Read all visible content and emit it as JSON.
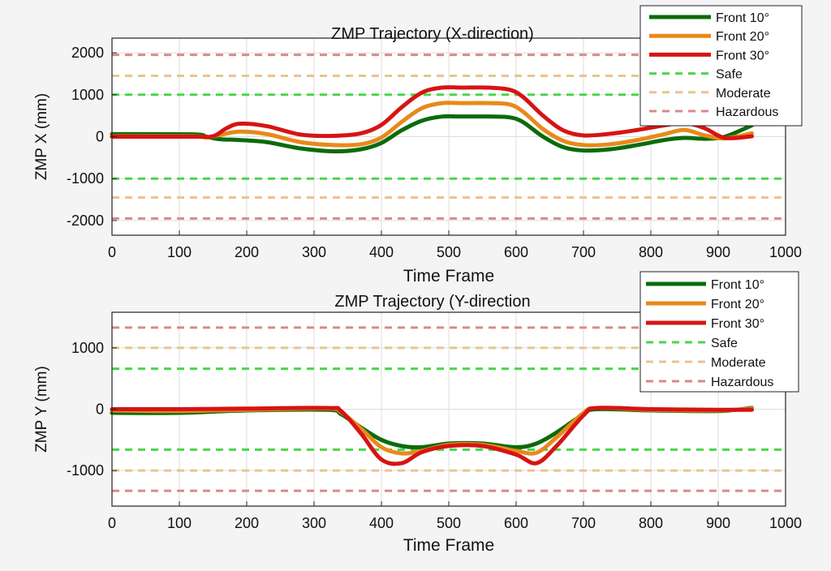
{
  "chart_data": [
    {
      "type": "line",
      "title": "ZMP Trajectory (X-direction)",
      "xlabel": "Time Frame",
      "ylabel": "ZMP X (mm)",
      "xlim": [
        0,
        1000
      ],
      "ylim": [
        -2350,
        2350
      ],
      "xticks": [
        0,
        100,
        200,
        300,
        400,
        500,
        600,
        700,
        800,
        900,
        1000
      ],
      "yticks": [
        -2000,
        -1000,
        0,
        1000,
        2000
      ],
      "grid": true,
      "legend": "top-right",
      "series": [
        {
          "name": "Front 10°",
          "color": "#0b6b0b",
          "x": [
            0,
            120,
            140,
            160,
            190,
            230,
            280,
            330,
            370,
            400,
            430,
            460,
            490,
            520,
            560,
            590,
            610,
            640,
            670,
            700,
            740,
            780,
            820,
            850,
            880,
            910,
            950
          ],
          "y": [
            60,
            55,
            0,
            -60,
            -80,
            -130,
            -280,
            -350,
            -300,
            -150,
            150,
            380,
            480,
            480,
            480,
            460,
            350,
            0,
            -250,
            -330,
            -300,
            -200,
            -80,
            -30,
            -50,
            0,
            270
          ]
        },
        {
          "name": "Front 20°",
          "color": "#e8891a",
          "x": [
            0,
            120,
            140,
            160,
            190,
            230,
            280,
            330,
            370,
            400,
            430,
            460,
            490,
            520,
            560,
            590,
            610,
            640,
            670,
            700,
            740,
            780,
            820,
            850,
            880,
            910,
            950
          ],
          "y": [
            10,
            10,
            -20,
            40,
            120,
            60,
            -130,
            -200,
            -180,
            -20,
            350,
            680,
            800,
            800,
            800,
            770,
            600,
            180,
            -100,
            -200,
            -180,
            -80,
            60,
            160,
            30,
            -40,
            80
          ]
        },
        {
          "name": "Front 30°",
          "color": "#d61414",
          "x": [
            0,
            120,
            150,
            170,
            190,
            230,
            280,
            330,
            370,
            400,
            430,
            460,
            490,
            520,
            560,
            590,
            610,
            640,
            670,
            700,
            740,
            780,
            820,
            850,
            880,
            910,
            950
          ],
          "y": [
            0,
            0,
            10,
            200,
            310,
            250,
            50,
            20,
            80,
            280,
            700,
            1050,
            1170,
            1170,
            1170,
            1120,
            950,
            500,
            150,
            30,
            70,
            160,
            270,
            330,
            200,
            -30,
            10
          ]
        }
      ],
      "reference_lines": [
        {
          "name": "Safe",
          "color": "#49d64a",
          "values": [
            1000,
            -1000
          ]
        },
        {
          "name": "Moderate",
          "color": "#ecc38d",
          "values": [
            1450,
            -1450
          ]
        },
        {
          "name": "Hazardous",
          "color": "#d88a8a",
          "values": [
            1950,
            -1950
          ]
        }
      ]
    },
    {
      "type": "line",
      "title": "ZMP Trajectory (Y-direction",
      "xlabel": "Time Frame",
      "ylabel": "ZMP Y (mm)",
      "xlim": [
        0,
        1000
      ],
      "ylim": [
        -1580,
        1580
      ],
      "xticks": [
        0,
        100,
        200,
        300,
        400,
        500,
        600,
        700,
        800,
        900,
        1000
      ],
      "yticks": [
        -1000,
        0,
        1000
      ],
      "grid": true,
      "legend": "top-right",
      "series": [
        {
          "name": "Front 10°",
          "color": "#0b6b0b",
          "x": [
            0,
            100,
            200,
            320,
            340,
            370,
            400,
            430,
            460,
            500,
            550,
            600,
            630,
            660,
            700,
            720,
            800,
            900,
            950
          ],
          "y": [
            -60,
            -60,
            -20,
            -10,
            -80,
            -300,
            -500,
            -600,
            -620,
            -560,
            -560,
            -620,
            -560,
            -380,
            -80,
            0,
            -20,
            -30,
            20
          ]
        },
        {
          "name": "Front 20°",
          "color": "#e8891a",
          "x": [
            0,
            100,
            200,
            320,
            340,
            370,
            400,
            430,
            460,
            500,
            550,
            600,
            630,
            660,
            700,
            720,
            800,
            900,
            950
          ],
          "y": [
            -20,
            -30,
            -10,
            10,
            -50,
            -320,
            -620,
            -720,
            -680,
            -580,
            -580,
            -680,
            -710,
            -460,
            -60,
            20,
            -10,
            -20,
            10
          ]
        },
        {
          "name": "Front 30°",
          "color": "#d61414",
          "x": [
            0,
            100,
            200,
            320,
            340,
            370,
            400,
            430,
            460,
            500,
            550,
            600,
            630,
            660,
            700,
            720,
            800,
            900,
            950
          ],
          "y": [
            0,
            0,
            10,
            20,
            -30,
            -400,
            -820,
            -880,
            -700,
            -600,
            -600,
            -740,
            -880,
            -600,
            -100,
            20,
            0,
            -10,
            -10
          ]
        }
      ],
      "reference_lines": [
        {
          "name": "Safe",
          "color": "#49d64a",
          "values": [
            660,
            -660
          ]
        },
        {
          "name": "Moderate",
          "color": "#ecc38d",
          "values": [
            1000,
            -1000
          ]
        },
        {
          "name": "Hazardous",
          "color": "#d88a8a",
          "values": [
            1330,
            -1330
          ]
        }
      ]
    }
  ]
}
